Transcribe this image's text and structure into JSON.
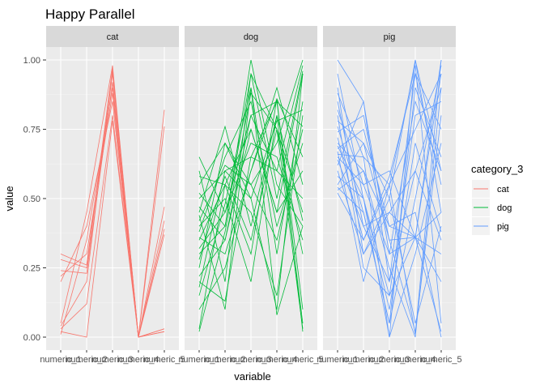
{
  "chart_data": {
    "type": "line",
    "title": "Happy Parallel",
    "xlabel": "variable",
    "ylabel": "value",
    "ylim": [
      0,
      1
    ],
    "y_ticks": [
      "0.00",
      "0.25",
      "0.50",
      "0.75",
      "1.00"
    ],
    "categories": [
      "numeric_1",
      "numeric_2",
      "numeric_3",
      "numeric_4",
      "numeric_5"
    ],
    "legend": {
      "title": "category_3",
      "placement": "right",
      "entries": [
        "cat",
        "dog",
        "pig"
      ]
    },
    "series": [
      {
        "name": "cat",
        "color": "#F8766D",
        "lines": [
          [
            0.3,
            0.26,
            0.97,
            0.0,
            0.82
          ],
          [
            0.28,
            0.25,
            0.95,
            0.0,
            0.76
          ],
          [
            0.24,
            0.23,
            0.92,
            0.0,
            0.47
          ],
          [
            0.22,
            0.3,
            0.88,
            0.0,
            0.42
          ],
          [
            0.2,
            0.4,
            0.85,
            0.0,
            0.39
          ],
          [
            0.05,
            0.45,
            0.98,
            0.0,
            0.37
          ],
          [
            0.03,
            0.12,
            0.8,
            0.0,
            0.03
          ],
          [
            0.02,
            0.0,
            0.78,
            0.0,
            0.02
          ],
          [
            0.01,
            0.35,
            0.9,
            0.0,
            0.02
          ],
          [
            0.04,
            0.2,
            0.96,
            0.0,
            0.03
          ]
        ]
      },
      {
        "name": "dog",
        "color": "#00BA38",
        "lines": [
          [
            0.65,
            0.45,
            0.8,
            0.6,
            0.98
          ],
          [
            0.6,
            0.2,
            0.95,
            0.75,
            0.3
          ],
          [
            0.58,
            0.55,
            0.3,
            0.86,
            0.02
          ],
          [
            0.55,
            0.7,
            0.5,
            0.1,
            0.95
          ],
          [
            0.52,
            0.4,
            1.0,
            0.55,
            0.4
          ],
          [
            0.5,
            0.6,
            0.65,
            0.85,
            0.76
          ],
          [
            0.47,
            0.35,
            0.75,
            0.45,
            0.6
          ],
          [
            0.45,
            0.76,
            0.4,
            0.8,
            0.42
          ],
          [
            0.44,
            0.1,
            0.9,
            0.3,
            0.85
          ],
          [
            0.42,
            0.62,
            0.55,
            0.7,
            1.0
          ],
          [
            0.4,
            0.5,
            0.2,
            0.8,
            0.05
          ],
          [
            0.38,
            0.65,
            0.85,
            0.4,
            0.7
          ],
          [
            0.36,
            0.3,
            0.6,
            0.9,
            0.55
          ],
          [
            0.35,
            0.55,
            0.45,
            0.15,
            0.8
          ],
          [
            0.32,
            0.45,
            0.7,
            0.65,
            0.35
          ],
          [
            0.3,
            0.4,
            0.95,
            0.5,
            0.96
          ],
          [
            0.28,
            0.58,
            0.35,
            0.75,
            0.45
          ],
          [
            0.25,
            0.7,
            0.55,
            0.35,
            0.75
          ],
          [
            0.22,
            0.35,
            0.8,
            0.85,
            0.1
          ],
          [
            0.2,
            0.13,
            0.65,
            0.6,
            0.5
          ],
          [
            0.18,
            0.6,
            0.5,
            0.78,
            0.82
          ],
          [
            0.15,
            0.48,
            0.9,
            0.08,
            0.4
          ],
          [
            0.1,
            0.25,
            0.6,
            0.86,
            0.65
          ],
          [
            0.03,
            0.55,
            0.75,
            0.45,
            0.95
          ],
          [
            0.02,
            0.38,
            0.88,
            0.75,
            0.03
          ]
        ]
      },
      {
        "name": "pig",
        "color": "#619CFF",
        "lines": [
          [
            1.0,
            0.85,
            0.3,
            0.36,
            0.95
          ],
          [
            0.95,
            0.5,
            0.0,
            1.0,
            0.6
          ],
          [
            0.9,
            0.3,
            0.45,
            0.6,
            0.35
          ],
          [
            0.88,
            0.65,
            0.55,
            0.01,
            1.0
          ],
          [
            0.85,
            0.4,
            0.2,
            0.95,
            0.75
          ],
          [
            0.82,
            0.55,
            0.6,
            0.36,
            0.45
          ],
          [
            0.8,
            0.25,
            0.15,
            0.8,
            0.85
          ],
          [
            0.78,
            0.7,
            0.5,
            0.05,
            0.4
          ],
          [
            0.76,
            0.45,
            0.05,
            0.5,
            0.98
          ],
          [
            0.74,
            0.8,
            0.35,
            0.36,
            0.2
          ],
          [
            0.72,
            0.35,
            0.58,
            0.95,
            0.55
          ],
          [
            0.7,
            0.6,
            0.25,
            0.0,
            0.9
          ],
          [
            0.69,
            0.5,
            0.1,
            0.7,
            0.38
          ],
          [
            0.68,
            0.75,
            0.4,
            0.36,
            1.0
          ],
          [
            0.67,
            0.2,
            0.55,
            0.98,
            0.05
          ],
          [
            0.66,
            0.65,
            0.0,
            0.3,
            0.7
          ],
          [
            0.65,
            0.55,
            0.3,
            0.85,
            0.6
          ],
          [
            0.64,
            0.4,
            0.45,
            0.36,
            0.02
          ],
          [
            0.62,
            0.85,
            0.2,
            0.6,
            0.9
          ],
          [
            0.6,
            0.3,
            0.5,
            1.0,
            0.45
          ],
          [
            0.58,
            0.5,
            0.15,
            0.36,
            0.3
          ],
          [
            0.55,
            0.7,
            0.35,
            0.02,
            0.8
          ],
          [
            0.54,
            0.45,
            0.05,
            0.9,
            0.65
          ],
          [
            0.53,
            0.6,
            0.4,
            0.45,
            0.0
          ],
          [
            0.52,
            0.35,
            0.55,
            0.75,
            0.95
          ]
        ]
      }
    ]
  }
}
